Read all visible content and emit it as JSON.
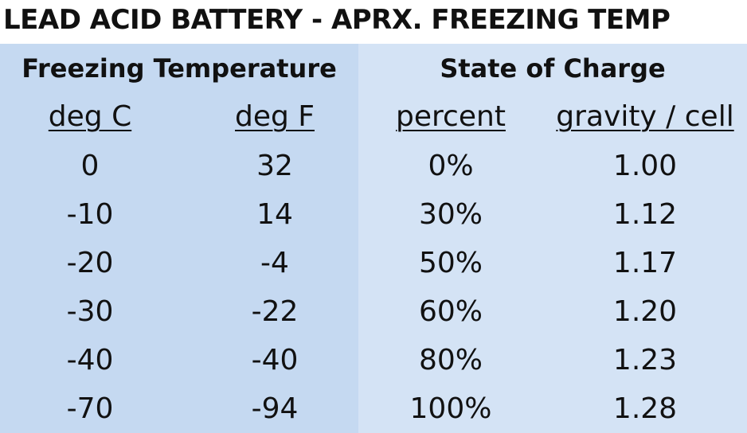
{
  "title": "LEAD ACID BATTERY - APRX. FREEZING TEMP",
  "table": {
    "groups": [
      {
        "label": "Freezing Temperature"
      },
      {
        "label": "State of Charge"
      }
    ],
    "columns": [
      "deg C",
      "deg F",
      "percent",
      "gravity / cell"
    ],
    "rows": [
      [
        "0",
        "32",
        "0%",
        "1.00"
      ],
      [
        "-10",
        "14",
        "30%",
        "1.12"
      ],
      [
        "-20",
        "-4",
        "50%",
        "1.17"
      ],
      [
        "-30",
        "-22",
        "60%",
        "1.20"
      ],
      [
        "-40",
        "-40",
        "80%",
        "1.23"
      ],
      [
        "-70",
        "-94",
        "100%",
        "1.28"
      ]
    ]
  },
  "colors": {
    "left_panel": "#c5d9f1",
    "right_panel": "#d4e3f5",
    "text": "#111111"
  }
}
